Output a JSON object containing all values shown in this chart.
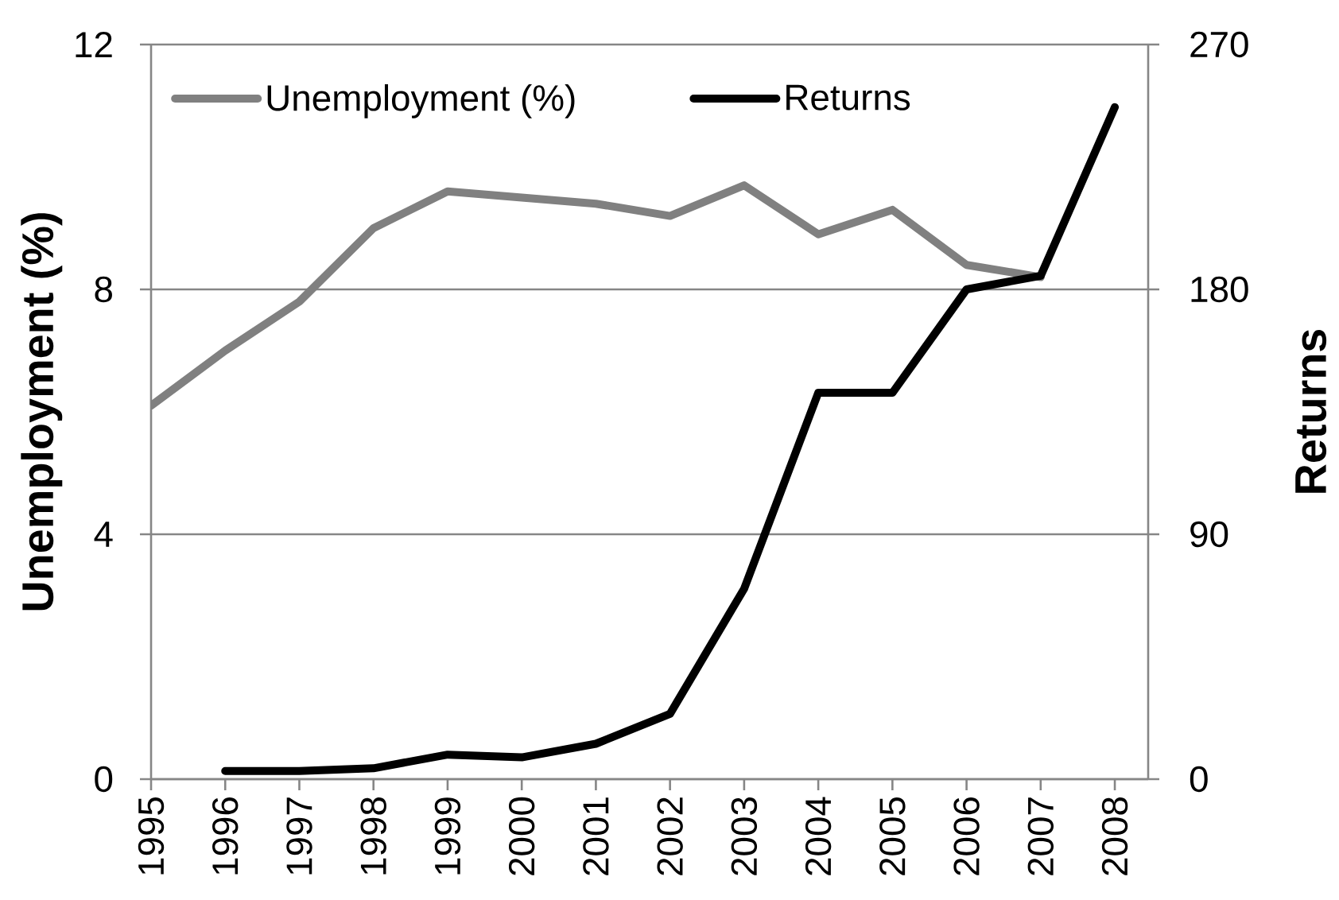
{
  "chart_data": {
    "type": "line",
    "categories": [
      "1995",
      "1996",
      "1997",
      "1998",
      "1999",
      "2000",
      "2001",
      "2002",
      "2003",
      "2004",
      "2005",
      "2006",
      "2007",
      "2008"
    ],
    "ylabel": "Unemployment (%)",
    "y2label": "Returns",
    "ylim": [
      0,
      12
    ],
    "yticks": [
      0,
      4,
      8,
      12
    ],
    "y2lim": [
      0,
      270
    ],
    "y2ticks": [
      0,
      90,
      180,
      270
    ],
    "grid": "y",
    "legend": "top left",
    "series": [
      {
        "name": "Unemployment (%)",
        "color": "#808080",
        "values": [
          6.1,
          7.0,
          7.8,
          9.0,
          9.6,
          9.5,
          9.4,
          9.2,
          9.7,
          8.9,
          9.3,
          8.4,
          8.2,
          null
        ]
      },
      {
        "name": "Returns",
        "color": "#000000",
        "axis": "y2",
        "values": [
          null,
          3,
          3,
          4,
          9,
          8,
          13,
          24,
          70,
          142,
          142,
          180,
          185,
          247
        ]
      }
    ]
  }
}
